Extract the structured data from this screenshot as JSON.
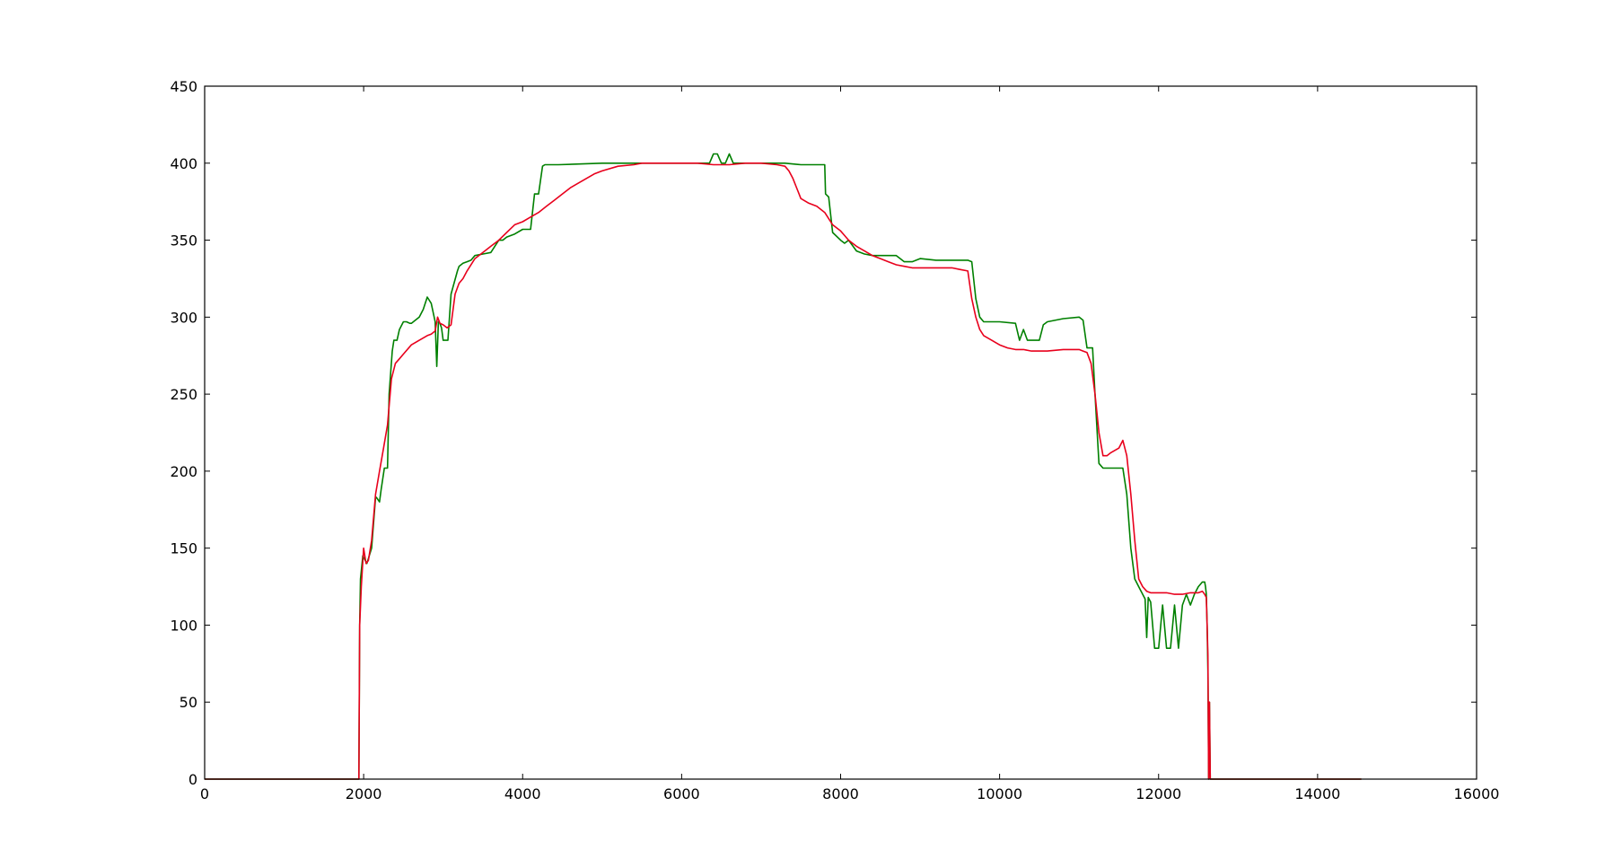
{
  "chart_data": {
    "type": "line",
    "title": "",
    "xlabel": "",
    "ylabel": "",
    "xlim": [
      0,
      16000
    ],
    "ylim": [
      0,
      450
    ],
    "xticks": [
      0,
      2000,
      4000,
      6000,
      8000,
      10000,
      12000,
      14000,
      16000
    ],
    "yticks": [
      0,
      50,
      100,
      150,
      200,
      250,
      300,
      350,
      400,
      450
    ],
    "xtick_labels": [
      "0",
      "2000",
      "4000",
      "6000",
      "8000",
      "10000",
      "12000",
      "14000",
      "16000"
    ],
    "ytick_labels": [
      "0",
      "50",
      "100",
      "150",
      "200",
      "250",
      "300",
      "350",
      "400",
      "450"
    ],
    "grid": false,
    "series": [
      {
        "color": "#008000",
        "x": [
          0,
          1940,
          1950,
          1960,
          1990,
          2040,
          2100,
          2150,
          2160,
          2200,
          2220,
          2260,
          2300,
          2320,
          2360,
          2380,
          2400,
          2420,
          2450,
          2500,
          2540,
          2580,
          2600,
          2650,
          2700,
          2750,
          2800,
          2850,
          2900,
          2920,
          2940,
          2960,
          2980,
          3000,
          3050,
          3060,
          3100,
          3180,
          3200,
          3250,
          3300,
          3350,
          3400,
          3500,
          3600,
          3700,
          3750,
          3800,
          3900,
          4000,
          4050,
          4100,
          4150,
          4200,
          4250,
          4280,
          4300,
          4350,
          4400,
          4450,
          5000,
          5200,
          5500,
          6000,
          6350,
          6400,
          6450,
          6500,
          6550,
          6600,
          6650,
          6700,
          7000,
          7300,
          7500,
          7800,
          7810,
          7850,
          7900,
          8000,
          8050,
          8100,
          8200,
          8300,
          8400,
          8500,
          8700,
          8800,
          8900,
          9000,
          9200,
          9400,
          9600,
          9650,
          9700,
          9750,
          9800,
          9900,
          10000,
          10200,
          10250,
          10300,
          10350,
          10500,
          10550,
          10600,
          10800,
          11000,
          11050,
          11100,
          11150,
          11170,
          11200,
          11250,
          11300,
          11400,
          11500,
          11550,
          11600,
          11650,
          11700,
          11750,
          11800,
          11830,
          11850,
          11870,
          11900,
          11950,
          12000,
          12050,
          12100,
          12150,
          12200,
          12250,
          12300,
          12350,
          12400,
          12450,
          12500,
          12550,
          12580,
          12590,
          12600,
          12610,
          12620,
          12630,
          12640,
          12650,
          12660,
          14550
        ],
        "y": [
          0,
          0,
          100,
          130,
          145,
          140,
          150,
          183,
          183,
          180,
          188,
          202,
          202,
          250,
          278,
          285,
          285,
          285,
          292,
          297,
          297,
          296,
          296,
          298,
          300,
          305,
          313,
          309,
          297,
          268,
          297,
          296,
          293,
          285,
          285,
          285,
          315,
          330,
          333,
          335,
          336,
          337,
          340,
          341,
          342,
          350,
          350,
          352,
          354,
          357,
          357,
          357,
          380,
          380,
          398,
          399,
          399,
          399,
          399,
          399,
          400,
          400,
          400,
          400,
          400,
          406,
          406,
          400,
          400,
          406,
          400,
          400,
          400,
          400,
          399,
          399,
          380,
          378,
          355,
          350,
          348,
          350,
          343,
          341,
          340,
          340,
          340,
          336,
          336,
          338,
          337,
          337,
          337,
          336,
          312,
          300,
          297,
          297,
          297,
          296,
          285,
          292,
          285,
          285,
          295,
          297,
          299,
          300,
          298,
          280,
          280,
          280,
          250,
          205,
          202,
          202,
          202,
          202,
          185,
          150,
          130,
          125,
          120,
          117,
          92,
          118,
          115,
          85,
          85,
          113,
          85,
          85,
          113,
          85,
          113,
          120,
          113,
          120,
          125,
          128,
          128,
          125,
          120,
          100,
          70,
          0,
          50,
          0,
          0,
          0
        ],
        "_note": ""
      },
      {
        "color": "#e8001c",
        "x": [
          0,
          1940,
          1950,
          1970,
          2000,
          2030,
          2060,
          2100,
          2150,
          2200,
          2250,
          2300,
          2350,
          2400,
          2450,
          2500,
          2600,
          2700,
          2800,
          2850,
          2900,
          2930,
          2960,
          3000,
          3050,
          3100,
          3150,
          3200,
          3250,
          3300,
          3400,
          3500,
          3600,
          3700,
          3800,
          3900,
          4000,
          4100,
          4200,
          4300,
          4400,
          4500,
          4600,
          4700,
          4800,
          4900,
          5000,
          5200,
          5400,
          5500,
          5600,
          5800,
          6000,
          6200,
          6400,
          6600,
          6800,
          7000,
          7200,
          7300,
          7350,
          7400,
          7500,
          7600,
          7700,
          7800,
          7900,
          8000,
          8050,
          8100,
          8200,
          8300,
          8400,
          8500,
          8600,
          8700,
          8800,
          8900,
          9000,
          9200,
          9400,
          9500,
          9600,
          9650,
          9700,
          9750,
          9800,
          9900,
          10000,
          10100,
          10200,
          10300,
          10400,
          10600,
          10800,
          11000,
          11050,
          11100,
          11150,
          11200,
          11250,
          11300,
          11350,
          11400,
          11500,
          11550,
          11600,
          11650,
          11700,
          11750,
          11800,
          11850,
          11900,
          12000,
          12100,
          12200,
          12300,
          12400,
          12500,
          12550,
          12580,
          12600,
          12610,
          12620,
          12630,
          12640,
          12650,
          12660,
          14550
        ],
        "y": [
          0,
          0,
          100,
          125,
          150,
          140,
          142,
          155,
          185,
          200,
          215,
          230,
          260,
          270,
          273,
          276,
          282,
          285,
          288,
          289,
          291,
          300,
          296,
          295,
          293,
          295,
          315,
          322,
          325,
          330,
          338,
          342,
          346,
          350,
          355,
          360,
          362,
          365,
          368,
          372,
          376,
          380,
          384,
          387,
          390,
          393,
          395,
          398,
          399,
          400,
          400,
          400,
          400,
          400,
          399,
          399,
          400,
          400,
          399,
          398,
          395,
          390,
          377,
          374,
          372,
          368,
          360,
          356,
          353,
          350,
          346,
          343,
          340,
          338,
          336,
          334,
          333,
          332,
          332,
          332,
          332,
          331,
          330,
          312,
          300,
          292,
          288,
          285,
          282,
          280,
          279,
          279,
          278,
          278,
          279,
          279,
          278,
          277,
          270,
          250,
          225,
          210,
          210,
          212,
          215,
          220,
          210,
          185,
          155,
          130,
          125,
          122,
          121,
          121,
          121,
          120,
          120,
          121,
          121,
          122,
          120,
          118,
          100,
          80,
          0,
          50,
          0,
          0,
          0
        ]
      }
    ]
  }
}
